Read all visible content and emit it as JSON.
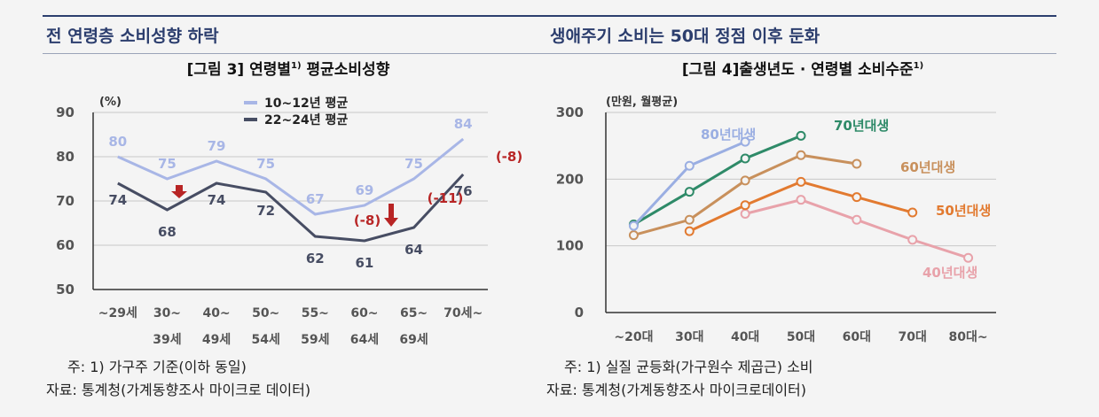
{
  "headings": {
    "left": "전 연령층 소비성향 하락",
    "right": "생애주기 소비는 50대 정점 이후 둔화"
  },
  "notes": {
    "left_note": "주: 1) 가구주 기준(이하 동일)",
    "left_source": "자료: 통계청(가계동향조사 마이크로 데이터)",
    "right_note": "주: 1) 실질 균등화(가구원수 제곱근) 소비",
    "right_source": "자료: 통계청(가계동향조사 마이크로데이터)"
  },
  "chart_data": [
    {
      "type": "line",
      "title": "[그림 3] 연령별1) 평균소비성향",
      "ylabel": "(%)",
      "ylim": [
        50,
        90
      ],
      "yticks": [
        50,
        60,
        70,
        80,
        90
      ],
      "grid": true,
      "legend_position": "top",
      "categories": [
        "~29세",
        "30~ 39세",
        "40~ 49세",
        "50~ 54세",
        "55~ 59세",
        "60~ 64세",
        "65~ 69세",
        "70세~"
      ],
      "series": [
        {
          "name": "10~12년 평균",
          "color": "#a8b6e6",
          "values": [
            80,
            75,
            79,
            75,
            67,
            69,
            75,
            84
          ]
        },
        {
          "name": "22~24년 평균",
          "color": "#474d63",
          "values": [
            74,
            68,
            74,
            72,
            62,
            61,
            64,
            76
          ]
        }
      ],
      "annotations": [
        {
          "text": "(-8)",
          "category": "60~ 64세",
          "color": "#b82525"
        },
        {
          "text": "(-11)",
          "category": "65~ 69세",
          "color": "#b82525"
        },
        {
          "text": "(-8)",
          "category": "70세~",
          "color": "#b82525"
        }
      ]
    },
    {
      "type": "line",
      "title": "[그림 4]출생년도 · 연령별 소비수준1)",
      "ylabel": "(만원, 월평균)",
      "ylim": [
        0,
        300
      ],
      "yticks": [
        0,
        100,
        200,
        300
      ],
      "grid": true,
      "categories": [
        "~20대",
        "30대",
        "40대",
        "50대",
        "60대",
        "70대",
        "80대~"
      ],
      "series": [
        {
          "name": "80년대생",
          "color": "#9aaee2",
          "values": [
            130,
            220,
            256,
            null,
            null,
            null,
            null
          ]
        },
        {
          "name": "70년대생",
          "color": "#2e8a68",
          "values": [
            132,
            181,
            231,
            265,
            null,
            null,
            null
          ]
        },
        {
          "name": "60년대생",
          "color": "#c8905c",
          "values": [
            116,
            139,
            198,
            236,
            223,
            null,
            null
          ]
        },
        {
          "name": "50년대생",
          "color": "#e27a30",
          "values": [
            null,
            122,
            161,
            196,
            173,
            150,
            null
          ]
        },
        {
          "name": "40년대생",
          "color": "#e8a2aa",
          "values": [
            null,
            null,
            148,
            169,
            139,
            109,
            82
          ]
        }
      ]
    }
  ]
}
